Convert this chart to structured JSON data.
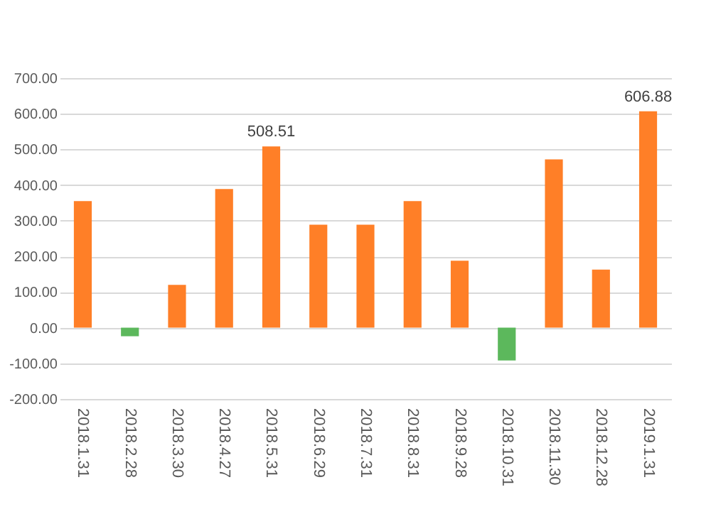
{
  "chart_data": {
    "type": "bar",
    "categories": [
      "2018.1.31",
      "2018.2.28",
      "2018.3.30",
      "2018.4.27",
      "2018.5.31",
      "2018.6.29",
      "2018.7.31",
      "2018.8.31",
      "2018.9.28",
      "2018.10.31",
      "2018.11.30",
      "2018.12.28",
      "2019.1.31"
    ],
    "values": [
      355,
      -24,
      120,
      389,
      508.51,
      289,
      289,
      355,
      188,
      -92,
      472,
      163,
      606.88
    ],
    "colors": [
      "#ff7f27",
      "#5cb85c",
      "#ff7f27",
      "#ff7f27",
      "#ff7f27",
      "#ff7f27",
      "#ff7f27",
      "#ff7f27",
      "#ff7f27",
      "#5cb85c",
      "#ff7f27",
      "#ff7f27",
      "#ff7f27"
    ],
    "value_labels": [
      null,
      null,
      null,
      null,
      "508.51",
      null,
      null,
      null,
      null,
      null,
      null,
      null,
      "606.88"
    ],
    "ylim": [
      -200,
      700
    ],
    "yticks": [
      {
        "value": -200,
        "label": "-200.00"
      },
      {
        "value": -100,
        "label": "-100.00"
      },
      {
        "value": 0,
        "label": "0.00"
      },
      {
        "value": 100,
        "label": "100.00"
      },
      {
        "value": 200,
        "label": "200.00"
      },
      {
        "value": 300,
        "label": "300.00"
      },
      {
        "value": 400,
        "label": "400.00"
      },
      {
        "value": 500,
        "label": "500.00"
      },
      {
        "value": 600,
        "label": "600.00"
      },
      {
        "value": 700,
        "label": "700.00"
      }
    ],
    "grid": "y"
  }
}
